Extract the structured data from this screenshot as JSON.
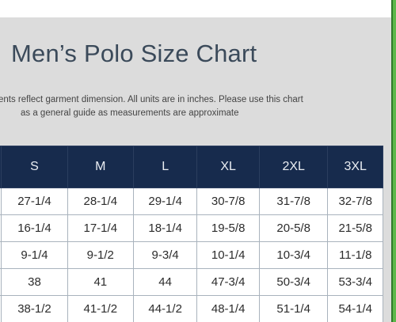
{
  "title": "Men’s Polo Size Chart",
  "note": {
    "line1": "ents reflect garment dimension. All units are in inches. Please use this chart",
    "line2": "as a general guide as measurements are approximate"
  },
  "table": {
    "headers": [
      "",
      "S",
      "M",
      "L",
      "XL",
      "2XL",
      "3XL"
    ],
    "rows": [
      [
        "",
        "27-1/4",
        "28-1/4",
        "29-1/4",
        "30-7/8",
        "31-7/8",
        "32-7/8"
      ],
      [
        "",
        "16-1/4",
        "17-1/4",
        "18-1/4",
        "19-5/8",
        "20-5/8",
        "21-5/8"
      ],
      [
        "",
        "9-1/4",
        "9-1/2",
        "9-3/4",
        "10-1/4",
        "10-3/4",
        "11-1/8"
      ],
      [
        "",
        "38",
        "41",
        "44",
        "47-3/4",
        "50-3/4",
        "53-3/4"
      ],
      [
        "",
        "38-1/2",
        "41-1/2",
        "44-1/2",
        "48-1/4",
        "51-1/4",
        "54-1/4"
      ]
    ]
  },
  "colors": {
    "header_bg": "#172b4d",
    "panel_bg": "#dcdcdc",
    "accent_bar": "#5db84a"
  }
}
